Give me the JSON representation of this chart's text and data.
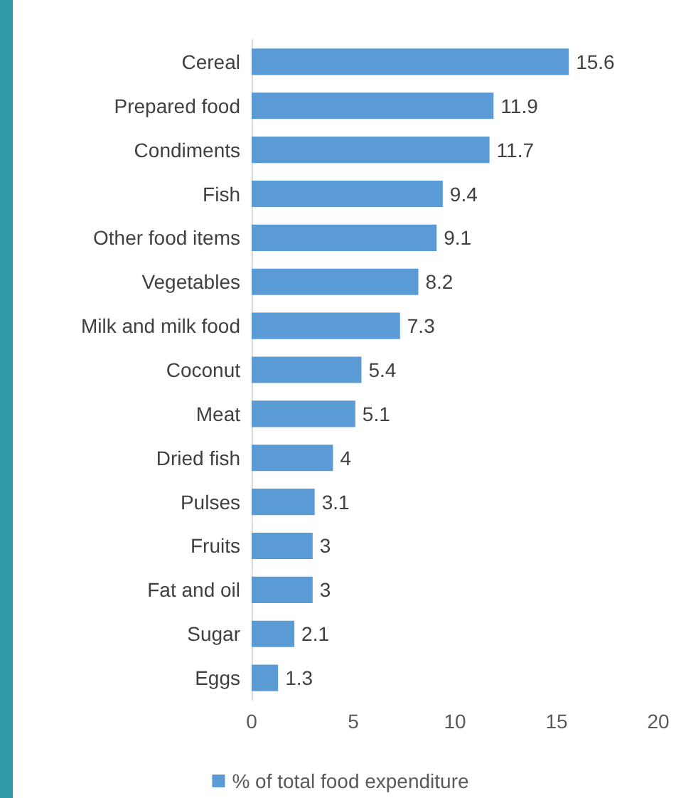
{
  "chart_data": {
    "type": "bar",
    "orientation": "horizontal",
    "categories": [
      "Cereal",
      "Prepared food",
      "Condiments",
      "Fish",
      "Other food items",
      "Vegetables",
      "Milk and milk food",
      "Coconut",
      "Meat",
      "Dried fish",
      "Pulses",
      "Fruits",
      "Fat and oil",
      "Sugar",
      "Eggs"
    ],
    "series": [
      {
        "name": "% of total food expenditure",
        "color": "#5b9bd5",
        "values": [
          15.6,
          11.9,
          11.7,
          9.4,
          9.1,
          8.2,
          7.3,
          5.4,
          5.1,
          4,
          3.1,
          3,
          3,
          2.1,
          1.3
        ]
      }
    ],
    "xlim": [
      0,
      20
    ],
    "xticks": [
      0,
      5,
      10,
      15,
      20
    ],
    "data_labels": true,
    "grid": false,
    "legend": "bottom"
  }
}
